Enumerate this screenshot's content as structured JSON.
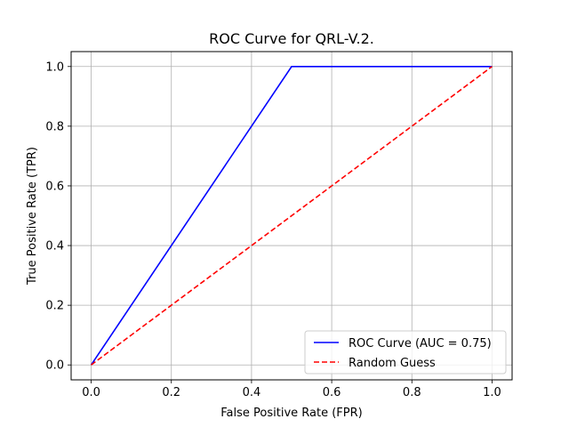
{
  "chart_data": {
    "type": "line",
    "title": "ROC Curve for QRL-V.2.",
    "xlabel": "False Positive Rate (FPR)",
    "ylabel": "True Positive Rate (TPR)",
    "xlim": [
      -0.05,
      1.05
    ],
    "ylim": [
      -0.05,
      1.05
    ],
    "xticks": [
      0.0,
      0.2,
      0.4,
      0.6,
      0.8,
      1.0
    ],
    "yticks": [
      0.0,
      0.2,
      0.4,
      0.6,
      0.8,
      1.0
    ],
    "xtick_labels": [
      "0.0",
      "0.2",
      "0.4",
      "0.6",
      "0.8",
      "1.0"
    ],
    "ytick_labels": [
      "0.0",
      "0.2",
      "0.4",
      "0.6",
      "0.8",
      "1.0"
    ],
    "grid": true,
    "legend_position": "lower-right",
    "series": [
      {
        "name": "ROC Curve (AUC = 0.75)",
        "color": "#0000ff",
        "linestyle": "solid",
        "x": [
          0.0,
          0.5,
          1.0
        ],
        "y": [
          0.0,
          1.0,
          1.0
        ]
      },
      {
        "name": "Random Guess",
        "color": "#ff0000",
        "linestyle": "dashed",
        "x": [
          0.0,
          1.0
        ],
        "y": [
          0.0,
          1.0
        ]
      }
    ]
  }
}
